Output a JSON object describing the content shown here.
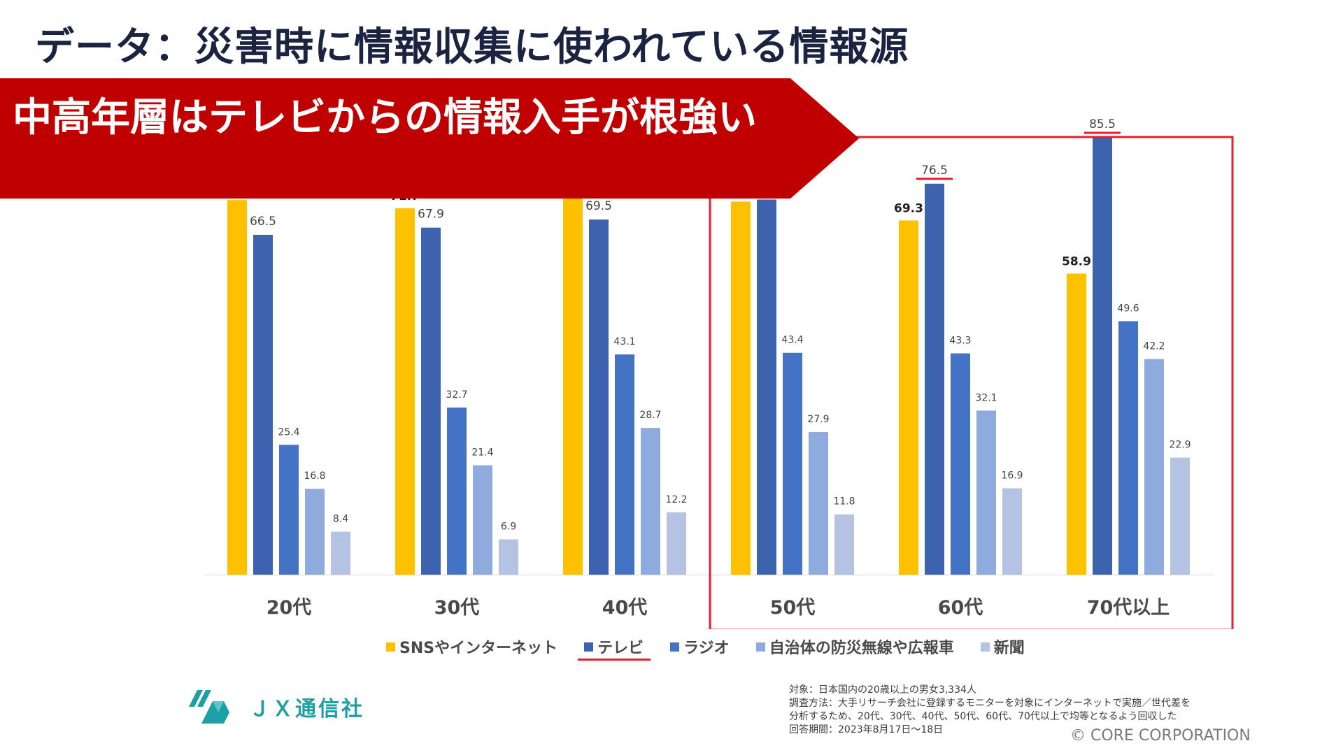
{
  "title": "データ：災害時に情報収集に使われている情報源",
  "banner": "中高年層はテレビからの情報入手が根強い",
  "colors": {
    "banner": "#c00000",
    "highlight": "#e0202e",
    "sns": "#ffc000",
    "tv": "#3d63ae",
    "radio": "#4472c4",
    "gov": "#8faadc",
    "newspaper": "#b4c3e4"
  },
  "chart_data": {
    "type": "bar",
    "categories": [
      "20代",
      "30代",
      "40代",
      "50代",
      "60代",
      "70代以上"
    ],
    "series": [
      {
        "name": "SNSやインターネット",
        "values": [
          73.3,
          71.7,
          75.1,
          73.0,
          69.3,
          58.9
        ]
      },
      {
        "name": "テレビ",
        "values": [
          66.5,
          67.9,
          69.5,
          73.4,
          76.5,
          85.5
        ]
      },
      {
        "name": "ラジオ",
        "values": [
          25.4,
          32.7,
          43.1,
          43.4,
          43.3,
          49.6
        ]
      },
      {
        "name": "自治体の防災無線や広報車",
        "values": [
          16.8,
          21.4,
          28.7,
          27.9,
          32.1,
          42.2
        ]
      },
      {
        "name": "新聞",
        "values": [
          8.4,
          6.9,
          12.2,
          11.8,
          16.9,
          22.9
        ]
      }
    ],
    "ylim": [
      0,
      90
    ],
    "highlighted_categories": [
      "50代",
      "60代",
      "70代以上"
    ],
    "underlined_series": "テレビ",
    "legend_position": "bottom"
  },
  "legend": [
    {
      "label": "SNSやインターネット",
      "color": "#ffc000"
    },
    {
      "label": "テレビ",
      "color": "#3d63ae"
    },
    {
      "label": "ラジオ",
      "color": "#4472c4"
    },
    {
      "label": "自治体の防災無線や広報車",
      "color": "#8faadc"
    },
    {
      "label": "新聞",
      "color": "#b4c3e4"
    }
  ],
  "logo": {
    "text": "ＪＸ通信社",
    "icon": "jx-logo-icon"
  },
  "note": {
    "line1": "対象：日本国内の20歳以上の男女3,334人",
    "line2": "調査方法：大手リサーチ会社に登録するモニターを対象にインターネットで実施／世代差を",
    "line3": "分析するため、20代、30代、40代、50代、60代、70代以上で均等となるよう回収した",
    "line4": "回答期間：2023年8月17日〜18日"
  },
  "copyright": "© CORE CORPORATION"
}
